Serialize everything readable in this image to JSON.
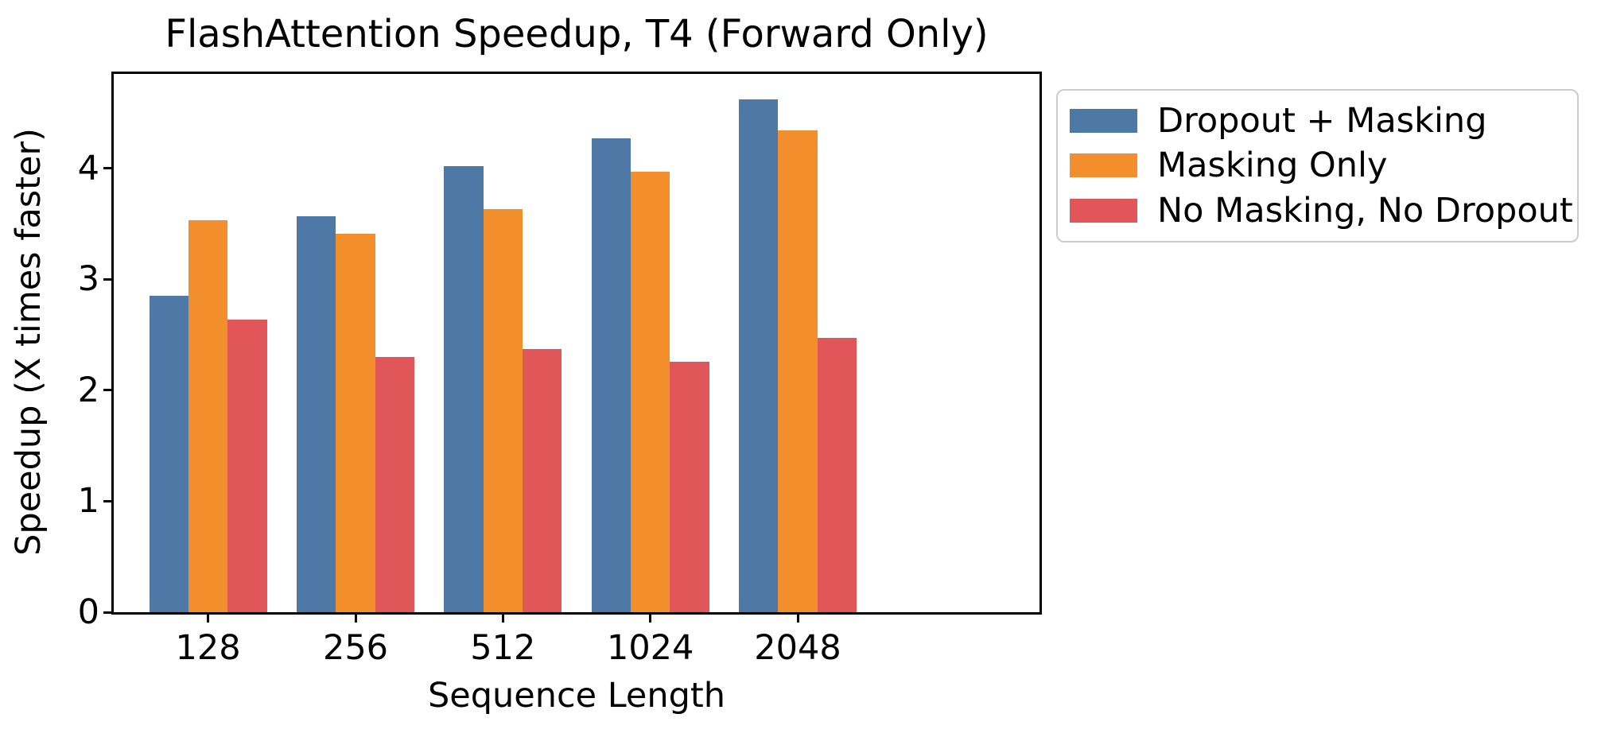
{
  "chart_data": {
    "type": "bar",
    "title": "FlashAttention Speedup, T4 (Forward Only)",
    "xlabel": "Sequence Length",
    "ylabel": "Speedup (X times faster)",
    "categories": [
      "128",
      "256",
      "512",
      "1024",
      "2048"
    ],
    "series": [
      {
        "name": "Dropout + Masking",
        "color": "#4e79a7",
        "values": [
          2.85,
          3.57,
          4.02,
          4.27,
          4.62
        ]
      },
      {
        "name": "Masking Only",
        "color": "#f28e2b",
        "values": [
          3.53,
          3.41,
          3.63,
          3.97,
          4.34
        ]
      },
      {
        "name": "No Masking, No Dropout",
        "color": "#e15759",
        "values": [
          2.64,
          2.3,
          2.37,
          2.26,
          2.47
        ]
      }
    ],
    "yticks": [
      0,
      1,
      2,
      3,
      4
    ],
    "ylim": [
      0,
      4.85
    ],
    "grid": false,
    "legend_position": "outside-top-right",
    "bar_group_width_fraction": 0.8,
    "x_edge_margin_units": 0.64
  }
}
